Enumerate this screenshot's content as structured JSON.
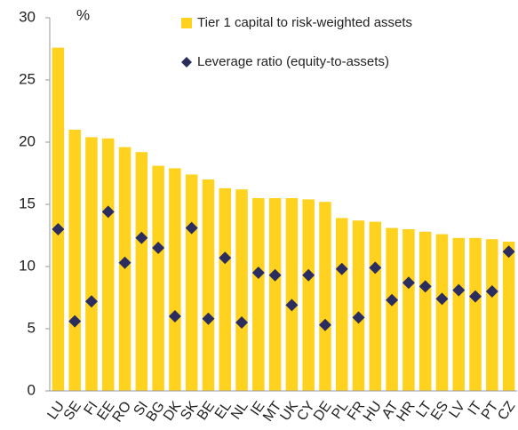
{
  "chart_data": {
    "type": "bar",
    "unit_label": "%",
    "categories": [
      "LU",
      "SE",
      "FI",
      "EE",
      "RO",
      "SI",
      "BG",
      "DK",
      "SK",
      "BE",
      "EL",
      "NL",
      "IE",
      "MT",
      "UK",
      "CY",
      "DE",
      "PL",
      "FR",
      "HU",
      "AT",
      "HR",
      "LT",
      "ES",
      "LV",
      "IT",
      "PT",
      "CZ"
    ],
    "series": [
      {
        "name": "Tier 1 capital to risk-weighted assets",
        "type": "bar",
        "color": "#ffd21f",
        "values": [
          27.6,
          21.0,
          20.4,
          20.3,
          19.6,
          19.2,
          18.1,
          17.9,
          17.4,
          17.0,
          16.3,
          16.2,
          15.5,
          15.5,
          15.5,
          15.4,
          15.2,
          13.9,
          13.7,
          13.6,
          13.1,
          13.0,
          12.8,
          12.6,
          12.3,
          12.3,
          12.2,
          12.0
        ]
      },
      {
        "name": "Leverage ratio (equity-to-assets)",
        "type": "scatter",
        "marker": "diamond",
        "color": "#2b2d5e",
        "values": [
          13.0,
          5.6,
          7.2,
          14.4,
          10.3,
          12.3,
          11.5,
          6.0,
          13.1,
          5.8,
          10.7,
          5.5,
          9.5,
          9.3,
          6.9,
          9.3,
          5.3,
          9.8,
          5.9,
          9.9,
          7.3,
          8.7,
          8.4,
          7.4,
          8.1,
          7.6,
          8.0,
          11.2
        ]
      }
    ],
    "ylim": [
      0,
      30
    ],
    "yticks": [
      0,
      5,
      10,
      15,
      20,
      25,
      30
    ],
    "grid": false,
    "legend": "upper right"
  }
}
